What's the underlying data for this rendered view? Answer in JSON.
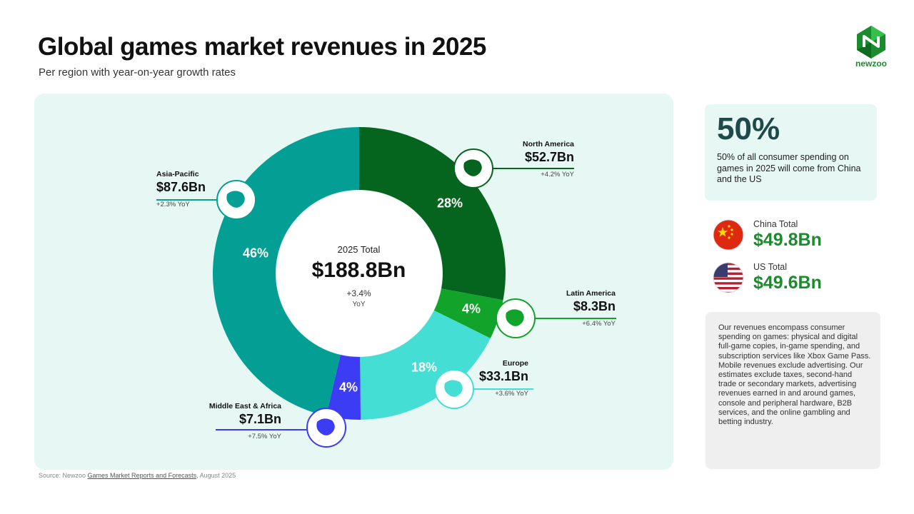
{
  "header": {
    "title": "Global games market revenues in 2025",
    "subtitle": "Per region with year-on-year growth rates",
    "logo_text": "newzoo"
  },
  "chart_data": {
    "type": "pie",
    "title": "Global games market revenues in 2025",
    "subtitle": "Per region with year-on-year growth rates",
    "total": {
      "label": "2025 Total",
      "value": "$188.8Bn",
      "growth": "+3.4%",
      "growth_unit": "YoY"
    },
    "slices": [
      {
        "name": "North America",
        "value": 52.7,
        "value_label": "$52.7Bn",
        "percent_label": "28%",
        "yoy": "+4.2% YoY",
        "color": "#05651e"
      },
      {
        "name": "Latin America",
        "value": 8.3,
        "value_label": "$8.3Bn",
        "percent_label": "4%",
        "yoy": "+6.4% YoY",
        "color": "#12a32a"
      },
      {
        "name": "Europe",
        "value": 33.1,
        "value_label": "$33.1Bn",
        "percent_label": "18%",
        "yoy": "+3.6% YoY",
        "color": "#45ded4"
      },
      {
        "name": "Middle East & Africa",
        "value": 7.1,
        "value_label": "$7.1Bn",
        "percent_label": "4%",
        "yoy": "+7.5% YoY",
        "color": "#3c3cf5"
      },
      {
        "name": "Asia-Pacific",
        "value": 87.6,
        "value_label": "$87.6Bn",
        "percent_label": "46%",
        "yoy": "+2.3% YoY",
        "color": "#039e94"
      }
    ],
    "callout_icons": {
      "North America": "north-america-map-icon",
      "Latin America": "latin-america-map-icon",
      "Europe": "europe-map-icon",
      "Middle East & Africa": "africa-map-icon",
      "Asia-Pacific": "asia-pacific-map-icon"
    }
  },
  "source": {
    "prefix": "Source: Newzoo ",
    "link": "Games Market Reports and Forecasts",
    "suffix": ", August 2025"
  },
  "stat_card": {
    "big": "50%",
    "desc": "50% of all consumer spending on games in 2025 will come from China and the US"
  },
  "countries": [
    {
      "label": "China Total",
      "value": "$49.8Bn",
      "icon": "china-flag-icon"
    },
    {
      "label": "US Total",
      "value": "$49.6Bn",
      "icon": "us-flag-icon"
    }
  ],
  "note": "Our revenues encompass consumer spending on games: physical and digital full-game copies, in-game spending, and subscription services like Xbox Game Pass. Mobile revenues exclude advertising. Our estimates exclude taxes, second-hand trade or secondary markets, advertising revenues earned in and around games, console and peripheral hardware, B2B services, and the online gambling and betting industry.",
  "colors": {
    "brand_green": "#1a8c2e",
    "panel_bg": "#e7f7f4",
    "note_bg": "#efefef"
  }
}
